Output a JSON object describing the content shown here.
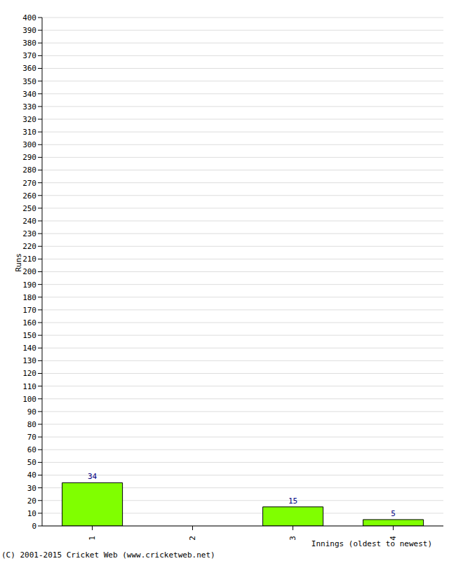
{
  "chart_data": {
    "type": "bar",
    "categories": [
      "1",
      "2",
      "3",
      "4"
    ],
    "values": [
      34,
      0,
      15,
      5
    ],
    "color": "#80ff00",
    "x_label": "Innings (oldest to newest)",
    "y_label": "Runs",
    "annotations": [
      "(C) 2001-2015 Cricket Web (www.cricketweb.net)"
    ],
    "ylim": [
      0,
      400
    ],
    "yticks": [
      0,
      10,
      20,
      30,
      40,
      50,
      60,
      70,
      80,
      90,
      100,
      110,
      120,
      130,
      140,
      150,
      160,
      170,
      180,
      190,
      200,
      210,
      220,
      230,
      240,
      250,
      260,
      270,
      280,
      290,
      300,
      310,
      320,
      330,
      340,
      350,
      360,
      370,
      380,
      390,
      400
    ],
    "grid": true,
    "data_labels": true
  }
}
